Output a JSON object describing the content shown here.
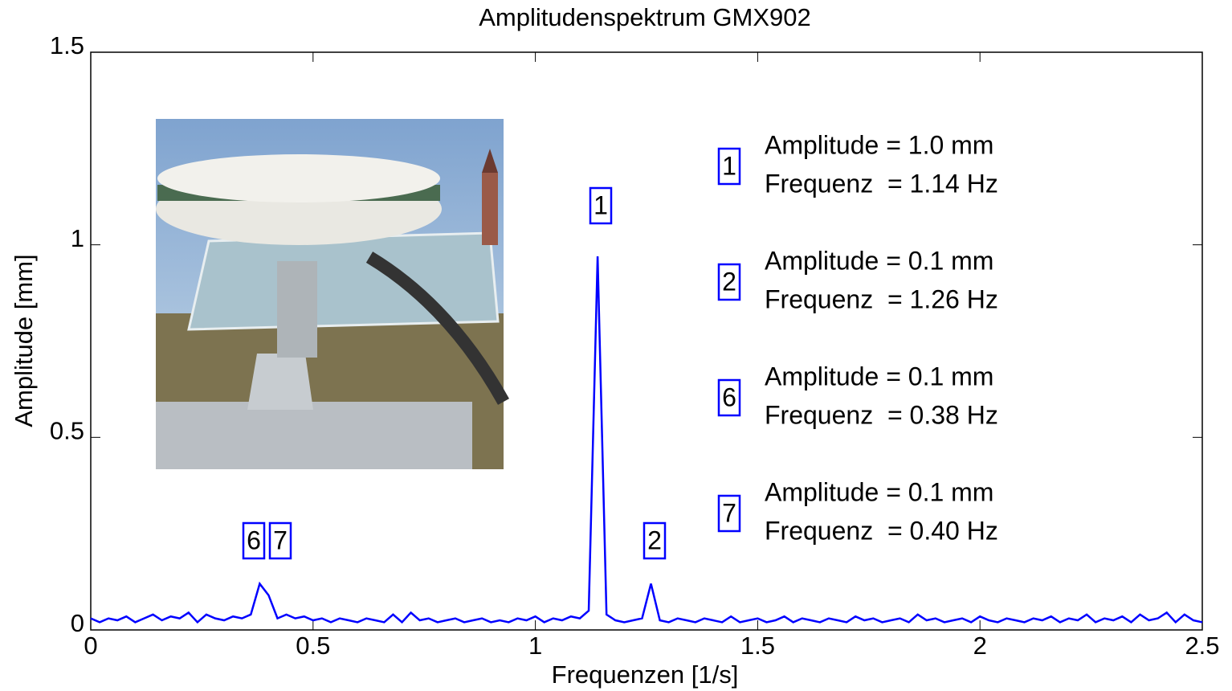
{
  "chart_data": {
    "type": "line",
    "title": "Amplitudenspektrum GMX902",
    "x_label": "Frequenzen [1/s]",
    "y_label": "Amplitude [mm]",
    "xlim": [
      0,
      2.5
    ],
    "ylim": [
      0,
      1.5
    ],
    "xticks": [
      0,
      0.5,
      1,
      1.5,
      2,
      2.5
    ],
    "yticks": [
      0,
      0.5,
      1,
      1.5
    ],
    "series": [
      {
        "color": "#0000ff",
        "x": [
          0,
          0.02,
          0.04,
          0.06,
          0.08,
          0.1,
          0.12,
          0.14,
          0.16,
          0.18,
          0.2,
          0.22,
          0.24,
          0.26,
          0.28,
          0.3,
          0.32,
          0.34,
          0.36,
          0.38,
          0.4,
          0.42,
          0.44,
          0.46,
          0.48,
          0.5,
          0.52,
          0.54,
          0.56,
          0.58,
          0.6,
          0.62,
          0.64,
          0.66,
          0.68,
          0.7,
          0.72,
          0.74,
          0.76,
          0.78,
          0.8,
          0.82,
          0.84,
          0.86,
          0.88,
          0.9,
          0.92,
          0.94,
          0.96,
          0.98,
          1,
          1.02,
          1.04,
          1.06,
          1.08,
          1.1,
          1.12,
          1.14,
          1.16,
          1.18,
          1.2,
          1.22,
          1.24,
          1.26,
          1.28,
          1.3,
          1.32,
          1.34,
          1.36,
          1.38,
          1.4,
          1.42,
          1.44,
          1.46,
          1.48,
          1.5,
          1.52,
          1.54,
          1.56,
          1.58,
          1.6,
          1.62,
          1.64,
          1.66,
          1.68,
          1.7,
          1.72,
          1.74,
          1.76,
          1.78,
          1.8,
          1.82,
          1.84,
          1.86,
          1.88,
          1.9,
          1.92,
          1.94,
          1.96,
          1.98,
          2,
          2.02,
          2.04,
          2.06,
          2.08,
          2.1,
          2.12,
          2.14,
          2.16,
          2.18,
          2.2,
          2.22,
          2.24,
          2.26,
          2.28,
          2.3,
          2.32,
          2.34,
          2.36,
          2.38,
          2.4,
          2.42,
          2.44,
          2.46,
          2.48,
          2.5
        ],
        "values": [
          0.03,
          0.02,
          0.03,
          0.025,
          0.035,
          0.02,
          0.03,
          0.04,
          0.025,
          0.035,
          0.03,
          0.045,
          0.02,
          0.04,
          0.03,
          0.025,
          0.035,
          0.03,
          0.04,
          0.12,
          0.09,
          0.03,
          0.04,
          0.03,
          0.035,
          0.025,
          0.03,
          0.02,
          0.03,
          0.025,
          0.02,
          0.03,
          0.025,
          0.02,
          0.04,
          0.02,
          0.045,
          0.025,
          0.03,
          0.02,
          0.025,
          0.03,
          0.02,
          0.025,
          0.03,
          0.02,
          0.025,
          0.02,
          0.03,
          0.025,
          0.035,
          0.02,
          0.03,
          0.025,
          0.035,
          0.03,
          0.05,
          0.97,
          0.04,
          0.025,
          0.02,
          0.025,
          0.03,
          0.12,
          0.025,
          0.02,
          0.03,
          0.025,
          0.02,
          0.03,
          0.025,
          0.02,
          0.035,
          0.02,
          0.025,
          0.03,
          0.02,
          0.025,
          0.035,
          0.02,
          0.03,
          0.025,
          0.02,
          0.03,
          0.025,
          0.02,
          0.035,
          0.025,
          0.03,
          0.02,
          0.025,
          0.03,
          0.02,
          0.04,
          0.025,
          0.03,
          0.02,
          0.025,
          0.03,
          0.02,
          0.035,
          0.025,
          0.02,
          0.03,
          0.025,
          0.02,
          0.03,
          0.025,
          0.035,
          0.02,
          0.03,
          0.025,
          0.04,
          0.02,
          0.03,
          0.025,
          0.035,
          0.02,
          0.04,
          0.025,
          0.03,
          0.045,
          0.02,
          0.04,
          0.025,
          0.02
        ]
      }
    ],
    "peak_markers": [
      "1",
      "2",
      "6",
      "7"
    ],
    "annotations": [
      {
        "marker": "1",
        "lines": [
          "Amplitude = 1.0 mm",
          "Frequenz  = 1.14 Hz"
        ]
      },
      {
        "marker": "2",
        "lines": [
          "Amplitude = 0.1 mm",
          "Frequenz  = 1.26 Hz"
        ]
      },
      {
        "marker": "6",
        "lines": [
          "Amplitude = 0.1 mm",
          "Frequenz  = 0.38 Hz"
        ]
      },
      {
        "marker": "7",
        "lines": [
          "Amplitude = 0.1 mm",
          "Frequenz  = 0.40 Hz"
        ]
      }
    ]
  }
}
